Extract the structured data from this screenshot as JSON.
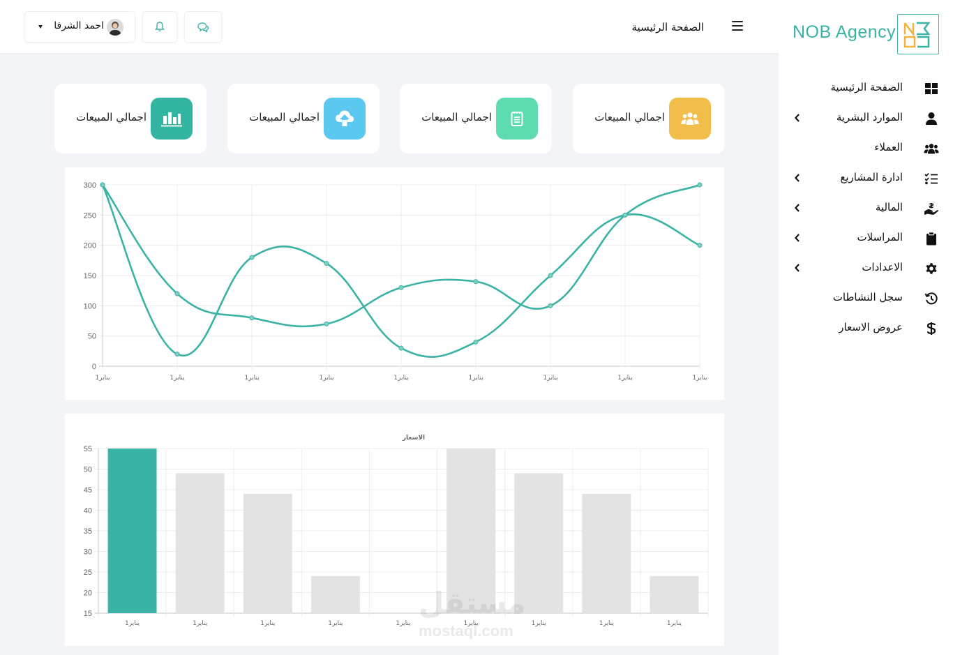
{
  "brand": {
    "name": "NOB Agency"
  },
  "header": {
    "breadcrumb": "الصفحة الرئيسية",
    "user_name": "احمد الشرفا"
  },
  "sidebar": {
    "items": [
      {
        "label": "الصفحة الرئيسية",
        "icon": "grid-icon",
        "has_submenu": false
      },
      {
        "label": "الموارد البشرية",
        "icon": "user-icon",
        "has_submenu": true
      },
      {
        "label": "العملاء",
        "icon": "users-icon",
        "has_submenu": false
      },
      {
        "label": "ادارة المشاريع",
        "icon": "tasks-icon",
        "has_submenu": true
      },
      {
        "label": "المالية",
        "icon": "hand-money-icon",
        "has_submenu": true
      },
      {
        "label": "المراسلات",
        "icon": "clipboard-icon",
        "has_submenu": true
      },
      {
        "label": "الاعدادات",
        "icon": "gear-icon",
        "has_submenu": true
      },
      {
        "label": "سجل النشاطات",
        "icon": "history-icon",
        "has_submenu": false
      },
      {
        "label": "عروض الاسعار",
        "icon": "dollar-icon",
        "has_submenu": false
      }
    ]
  },
  "cards": [
    {
      "label": "اجمالي المبيعات",
      "icon": "users-group-icon",
      "color": "#f2be4b"
    },
    {
      "label": "اجمالي المبيعات",
      "icon": "notepad-icon",
      "color": "#5fdbb0"
    },
    {
      "label": "اجمالي المبيعات",
      "icon": "cloud-upload-icon",
      "color": "#5bc8f0"
    },
    {
      "label": "اجمالي المبيعات",
      "icon": "bar-chart-icon",
      "color": "#33b5a2"
    }
  ],
  "colors": {
    "accent": "#3bb3a4",
    "bar_grey": "#e3e3e3"
  },
  "watermark": {
    "arabic": "مستقل",
    "latin": "mostaql.com"
  },
  "chart_data": [
    {
      "type": "line",
      "x": [
        "1يناير",
        "1يناير",
        "1يناير",
        "1يناير",
        "1يناير",
        "1يناير",
        "1يناير",
        "1يناير",
        "1يناير"
      ],
      "series": [
        {
          "values": [
            300,
            20,
            180,
            170,
            30,
            40,
            150,
            250,
            200
          ]
        },
        {
          "values": [
            300,
            120,
            80,
            70,
            130,
            140,
            100,
            250,
            300
          ]
        }
      ],
      "ylim": [
        0,
        300
      ],
      "yticks": [
        0,
        50,
        100,
        150,
        200,
        250,
        300
      ],
      "grid": true,
      "curve": "smooth"
    },
    {
      "type": "bar",
      "title": "الاسعار",
      "categories": [
        "1يناير",
        "1يناير",
        "1يناير",
        "1يناير",
        "1يناير",
        "1يناير",
        "1يناير",
        "1يناير",
        "1يناير"
      ],
      "values": [
        55,
        49,
        44,
        24,
        15,
        55,
        49,
        44,
        24
      ],
      "highlight_index": 0,
      "ylim": [
        15,
        55
      ],
      "yticks": [
        15,
        20,
        25,
        30,
        35,
        40,
        45,
        50,
        55
      ],
      "grid": true
    }
  ]
}
